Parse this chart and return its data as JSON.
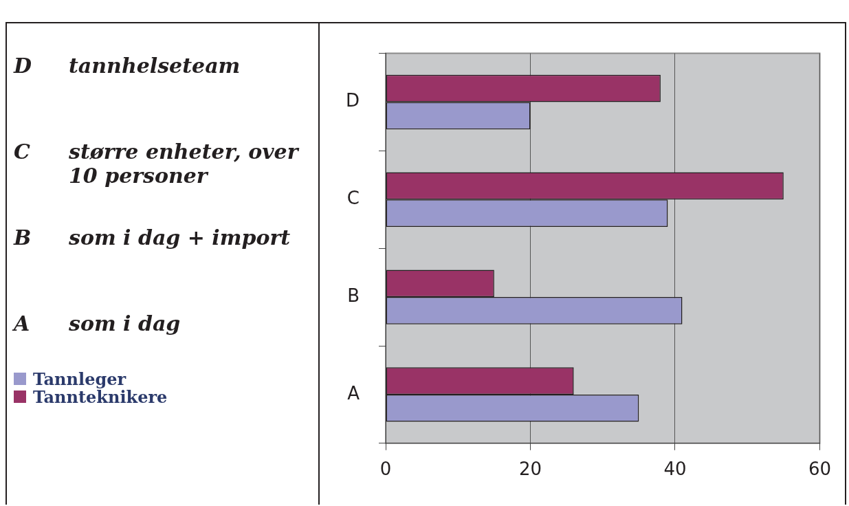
{
  "chart_data": {
    "type": "bar",
    "orientation": "horizontal",
    "categories": [
      "D",
      "C",
      "B",
      "A"
    ],
    "series": [
      {
        "name": "Tannleger",
        "color": "#9999cc",
        "values": [
          20,
          39,
          41,
          35
        ]
      },
      {
        "name": "Tannteknikere",
        "color": "#993366",
        "values": [
          38,
          55,
          15,
          26
        ]
      }
    ],
    "xlim": [
      0,
      60
    ],
    "xticks": [
      0,
      20,
      40,
      60
    ],
    "grid": "x",
    "legend": "left",
    "annotations": [
      "D tannhelseteam",
      "C større enheter, over 10 personer",
      "B som i dag + import",
      "A som i dag"
    ]
  }
}
